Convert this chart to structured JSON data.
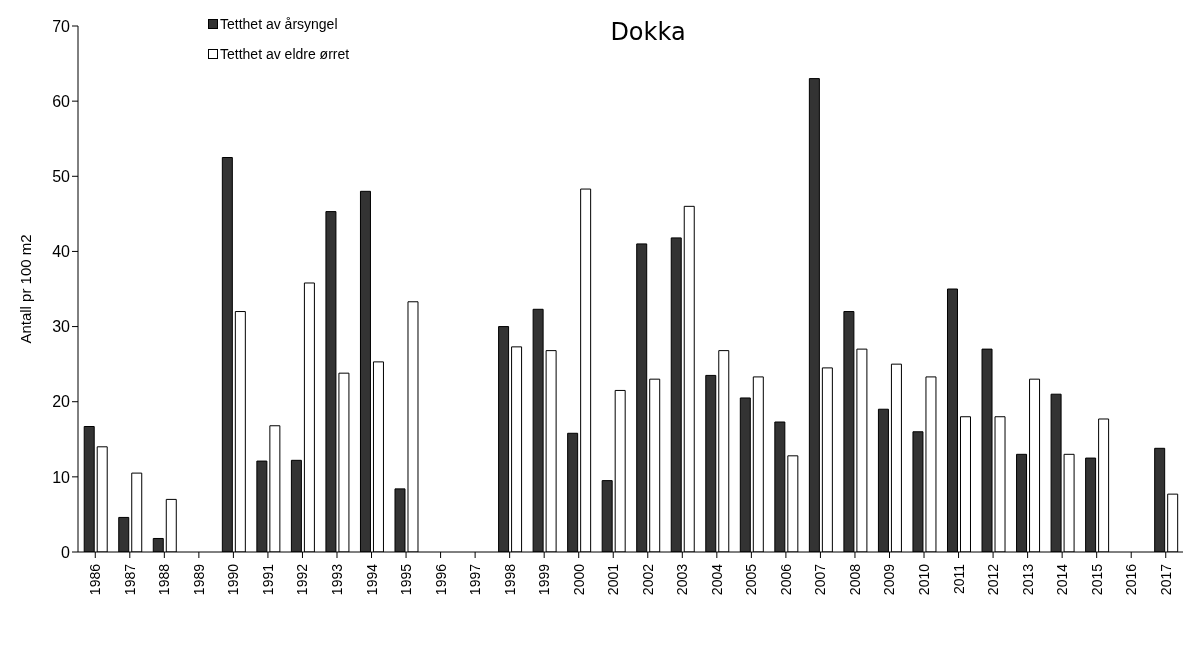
{
  "chart_data": {
    "type": "bar",
    "title": "Dokka",
    "ylabel": "Antall pr 100 m2",
    "categories": [
      "1986",
      "1987",
      "1988",
      "1989",
      "1990",
      "1991",
      "1992",
      "1993",
      "1994",
      "1995",
      "1996",
      "1997",
      "1998",
      "1999",
      "2000",
      "2001",
      "2002",
      "2003",
      "2004",
      "2005",
      "2006",
      "2007",
      "2008",
      "2009",
      "2010",
      "2011",
      "2012",
      "2013",
      "2014",
      "2015",
      "2016",
      "2017"
    ],
    "series": [
      {
        "name": "Tetthet av årsyngel",
        "color": "#333333",
        "values": [
          16.7,
          4.6,
          1.8,
          null,
          52.5,
          12.1,
          12.2,
          45.3,
          48,
          8.4,
          null,
          null,
          30,
          32.3,
          15.8,
          9.5,
          41,
          41.8,
          23.5,
          20.5,
          17.3,
          63,
          32,
          19,
          16,
          35,
          27,
          13,
          21,
          12.5,
          null,
          13.8
        ]
      },
      {
        "name": "Tetthet av eldre ørret",
        "color": "#ffffff",
        "values": [
          14,
          10.5,
          7,
          null,
          32,
          16.8,
          35.8,
          23.8,
          25.3,
          33.3,
          null,
          null,
          27.3,
          26.8,
          48.3,
          21.5,
          23,
          46,
          26.8,
          23.3,
          12.8,
          24.5,
          27,
          25,
          23.3,
          18,
          18,
          23,
          13,
          17.7,
          null,
          7.7
        ]
      }
    ],
    "ylim": [
      0,
      70
    ],
    "yticks": [
      0,
      10,
      20,
      30,
      40,
      50,
      60,
      70
    ],
    "legend": "top left"
  }
}
